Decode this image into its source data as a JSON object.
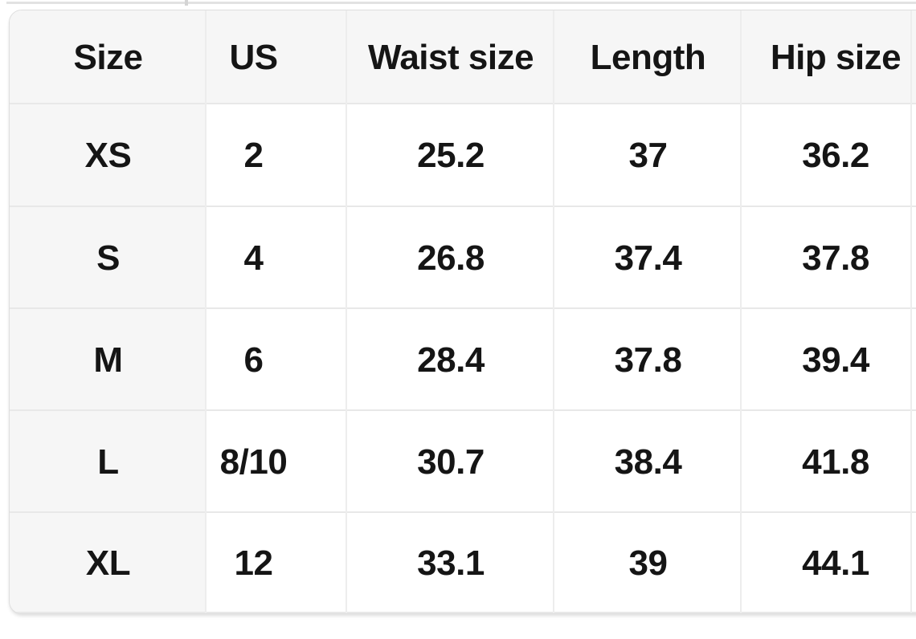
{
  "size_chart": {
    "columns": [
      "Size",
      "US",
      "Waist size",
      "Length",
      "Hip size"
    ],
    "rows": [
      {
        "label": "XS",
        "values": [
          "2",
          "25.2",
          "37",
          "36.2"
        ]
      },
      {
        "label": "S",
        "values": [
          "4",
          "26.8",
          "37.4",
          "37.8"
        ]
      },
      {
        "label": "M",
        "values": [
          "6",
          "28.4",
          "37.8",
          "39.4"
        ]
      },
      {
        "label": "L",
        "values": [
          "8/10",
          "30.7",
          "38.4",
          "41.8"
        ]
      },
      {
        "label": "XL",
        "values": [
          "12",
          "33.1",
          "39",
          "44.1"
        ]
      }
    ],
    "colors": {
      "header_background": "#f6f6f6",
      "row_label_background": "#f6f6f6",
      "cell_background": "#ffffff",
      "column_divider": "#ededed",
      "row_divider": "#e8e8e8",
      "card_border": "#dedede",
      "text": "#151515"
    }
  }
}
